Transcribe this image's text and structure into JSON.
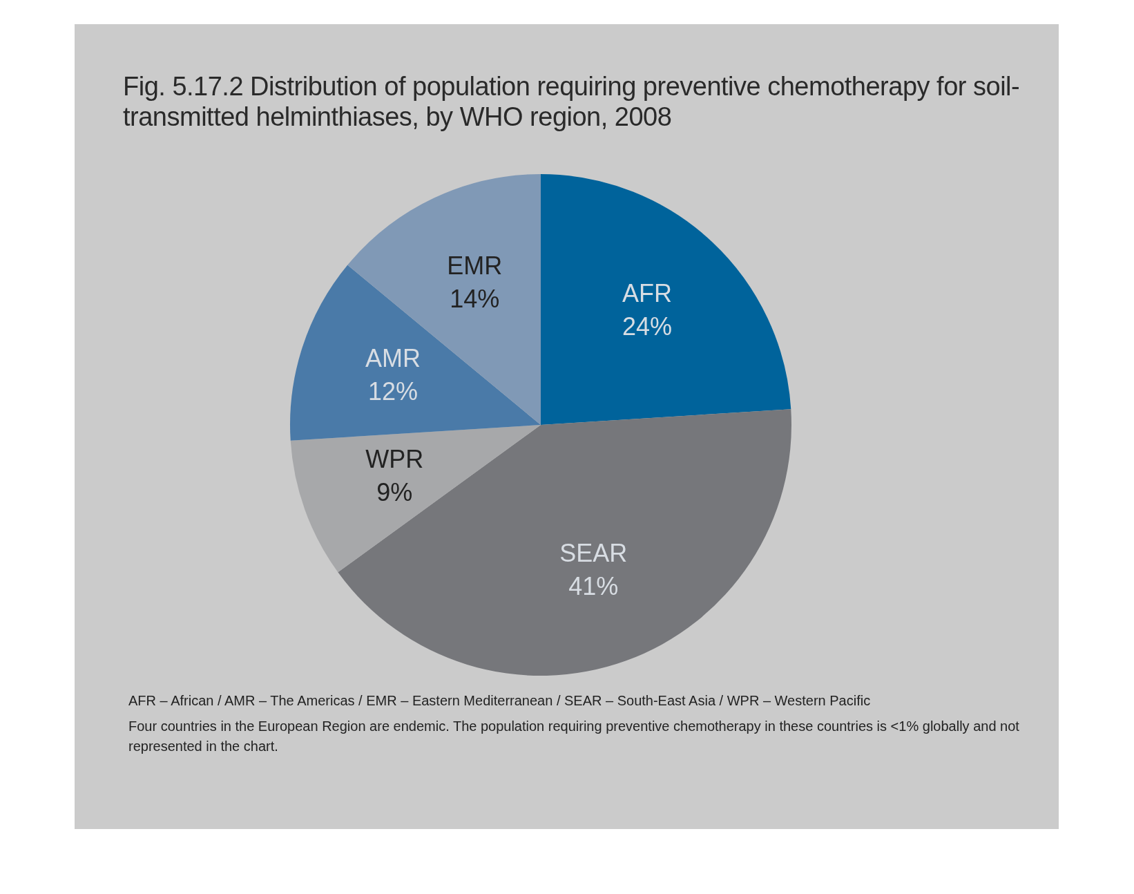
{
  "chart_data": {
    "type": "pie",
    "title": "Fig. 5.17.2  Distribution of population requiring preventive chemotherapy for soil-transmitted helminthiases, by WHO region, 2008",
    "categories": [
      "AFR",
      "SEAR",
      "WPR",
      "AMR",
      "EMR"
    ],
    "values": [
      24,
      41,
      9,
      12,
      14
    ],
    "value_labels": [
      "24%",
      "41%",
      "9%",
      "12%",
      "14%"
    ],
    "colors": [
      "#00639b",
      "#76777b",
      "#a7a8aa",
      "#4a7aa8",
      "#8099b6"
    ],
    "legend": false,
    "annotations": [
      "AFR – African / AMR – The Americas / EMR – Eastern Mediterranean / SEAR – South-East Asia / WPR – Western Pacific",
      "Four countries in the European Region are endemic. The population requiring preventive chemotherapy in these countries is <1% globally and not represented in the chart."
    ]
  }
}
